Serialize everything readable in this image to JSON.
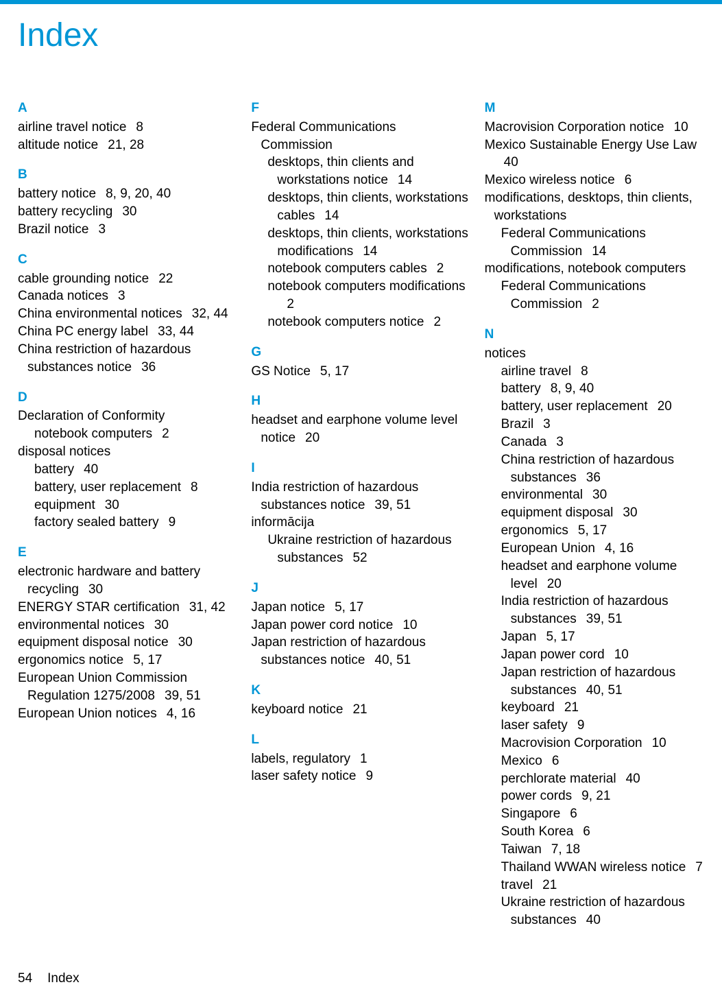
{
  "title": "Index",
  "footer": {
    "pageNum": "54",
    "label": "Index"
  },
  "colors": {
    "accent": "#0096d6",
    "text": "#000000",
    "bg": "#ffffff"
  },
  "fontsize": {
    "title": 48,
    "body": 19
  },
  "sections": [
    {
      "letter": "A",
      "entries": [
        {
          "t": "airline travel notice",
          "p": "8"
        },
        {
          "t": "altitude notice",
          "p": "21, 28"
        }
      ]
    },
    {
      "letter": "B",
      "entries": [
        {
          "t": "battery notice",
          "p": "8, 9, 20, 40"
        },
        {
          "t": "battery recycling",
          "p": "30"
        },
        {
          "t": "Brazil notice",
          "p": "3"
        }
      ]
    },
    {
      "letter": "C",
      "entries": [
        {
          "t": "cable grounding notice",
          "p": "22"
        },
        {
          "t": "Canada notices",
          "p": "3"
        },
        {
          "t": "China environmental notices",
          "p": "32, 44"
        },
        {
          "t": "China PC energy label",
          "p": "33, 44"
        },
        {
          "t": "China restriction of hazardous substances notice",
          "p": "36"
        }
      ]
    },
    {
      "letter": "D",
      "entries": [
        {
          "t": "Declaration of Conformity",
          "children": [
            {
              "t": "notebook computers",
              "p": "2",
              "lvl": 1
            }
          ]
        },
        {
          "t": "disposal notices",
          "children": [
            {
              "t": "battery",
              "p": "40",
              "lvl": 1
            },
            {
              "t": "battery, user replacement",
              "p": "8",
              "lvl": 1
            },
            {
              "t": "equipment",
              "p": "30",
              "lvl": 1
            },
            {
              "t": "factory sealed battery",
              "p": "9",
              "lvl": 1
            }
          ]
        }
      ]
    },
    {
      "letter": "E",
      "entries": [
        {
          "t": "electronic hardware and battery recycling",
          "p": "30"
        },
        {
          "t": "ENERGY STAR certification",
          "p": "31, 42"
        },
        {
          "t": "environmental notices",
          "p": "30"
        },
        {
          "t": "equipment disposal notice",
          "p": "30"
        },
        {
          "t": "ergonomics notice",
          "p": "5, 17"
        },
        {
          "t": "European Union Commission Regulation 1275/2008",
          "p": "39, 51"
        },
        {
          "t": "European Union notices",
          "p": "4, 16"
        }
      ]
    },
    {
      "letter": "F",
      "entries": [
        {
          "t": "Federal Communications Commission",
          "children": [
            {
              "t": "desktops, thin clients and workstations notice",
              "p": "14",
              "lvl": 1
            },
            {
              "t": "desktops, thin clients, workstations cables",
              "p": "14",
              "lvl": 1
            },
            {
              "t": "desktops, thin clients, workstations modifications",
              "p": "14",
              "lvl": 1
            },
            {
              "t": "notebook computers cables",
              "p": "2",
              "lvl": 1
            },
            {
              "t": "notebook computers modifications",
              "p": "2",
              "lvl": 1
            },
            {
              "t": "notebook computers notice",
              "p": "2",
              "lvl": 1
            }
          ]
        }
      ]
    },
    {
      "letter": "G",
      "entries": [
        {
          "t": "GS Notice",
          "p": "5, 17"
        }
      ]
    },
    {
      "letter": "H",
      "entries": [
        {
          "t": "headset and earphone volume level notice",
          "p": "20"
        }
      ]
    },
    {
      "letter": "I",
      "entries": [
        {
          "t": "India restriction of hazardous substances notice",
          "p": "39, 51"
        },
        {
          "t": "informācija",
          "children": [
            {
              "t": "Ukraine restriction of hazardous substances",
              "p": "52",
              "lvl": 1
            }
          ]
        }
      ]
    },
    {
      "letter": "J",
      "entries": [
        {
          "t": "Japan notice",
          "p": "5, 17"
        },
        {
          "t": "Japan power cord notice",
          "p": "10"
        },
        {
          "t": "Japan restriction of hazardous substances notice",
          "p": "40, 51"
        }
      ]
    },
    {
      "letter": "K",
      "entries": [
        {
          "t": "keyboard notice",
          "p": "21"
        }
      ]
    },
    {
      "letter": "L",
      "entries": [
        {
          "t": "labels, regulatory",
          "p": "1"
        },
        {
          "t": "laser safety notice",
          "p": "9"
        }
      ]
    },
    {
      "letter": "M",
      "entries": [
        {
          "t": "Macrovision Corporation notice",
          "p": "10"
        },
        {
          "t": "Mexico Sustainable Energy Use Law",
          "p": "40"
        },
        {
          "t": "Mexico wireless notice",
          "p": "6"
        },
        {
          "t": "modifications, desktops, thin clients, workstations",
          "children": [
            {
              "t": "Federal Communications Commission",
              "p": "14",
              "lvl": 1
            }
          ]
        },
        {
          "t": "modifications, notebook computers",
          "children": [
            {
              "t": "Federal Communications Commission",
              "p": "2",
              "lvl": 1
            }
          ]
        }
      ]
    },
    {
      "letter": "N",
      "entries": [
        {
          "t": "notices",
          "children": [
            {
              "t": "airline travel",
              "p": "8",
              "lvl": 1
            },
            {
              "t": "battery",
              "p": "8, 9, 40",
              "lvl": 1
            },
            {
              "t": "battery, user replacement",
              "p": "20",
              "lvl": 1
            },
            {
              "t": "Brazil",
              "p": "3",
              "lvl": 1
            },
            {
              "t": "Canada",
              "p": "3",
              "lvl": 1
            },
            {
              "t": "China restriction of hazardous substances",
              "p": "36",
              "lvl": 1
            },
            {
              "t": "environmental",
              "p": "30",
              "lvl": 1
            },
            {
              "t": "equipment disposal",
              "p": "30",
              "lvl": 1
            },
            {
              "t": "ergonomics",
              "p": "5, 17",
              "lvl": 1
            },
            {
              "t": "European Union",
              "p": "4, 16",
              "lvl": 1
            },
            {
              "t": "headset and earphone volume level",
              "p": "20",
              "lvl": 1
            },
            {
              "t": "India restriction of hazardous substances",
              "p": "39, 51",
              "lvl": 1
            },
            {
              "t": "Japan",
              "p": "5, 17",
              "lvl": 1
            },
            {
              "t": "Japan power cord",
              "p": "10",
              "lvl": 1
            },
            {
              "t": "Japan restriction of hazardous substances",
              "p": "40, 51",
              "lvl": 1
            },
            {
              "t": "keyboard",
              "p": "21",
              "lvl": 1
            },
            {
              "t": "laser safety",
              "p": "9",
              "lvl": 1
            },
            {
              "t": "Macrovision Corporation",
              "p": "10",
              "lvl": 1
            },
            {
              "t": "Mexico",
              "p": "6",
              "lvl": 1
            },
            {
              "t": "perchlorate material",
              "p": "40",
              "lvl": 1
            },
            {
              "t": "power cords",
              "p": "9, 21",
              "lvl": 1
            },
            {
              "t": "Singapore",
              "p": "6",
              "lvl": 1
            },
            {
              "t": "South Korea",
              "p": "6",
              "lvl": 1
            },
            {
              "t": "Taiwan",
              "p": "7, 18",
              "lvl": 1
            },
            {
              "t": "Thailand WWAN wireless notice",
              "p": "7",
              "lvl": 1
            },
            {
              "t": "travel",
              "p": "21",
              "lvl": 1
            },
            {
              "t": "Ukraine restriction of hazardous substances",
              "p": "40",
              "lvl": 1
            }
          ]
        }
      ]
    }
  ]
}
